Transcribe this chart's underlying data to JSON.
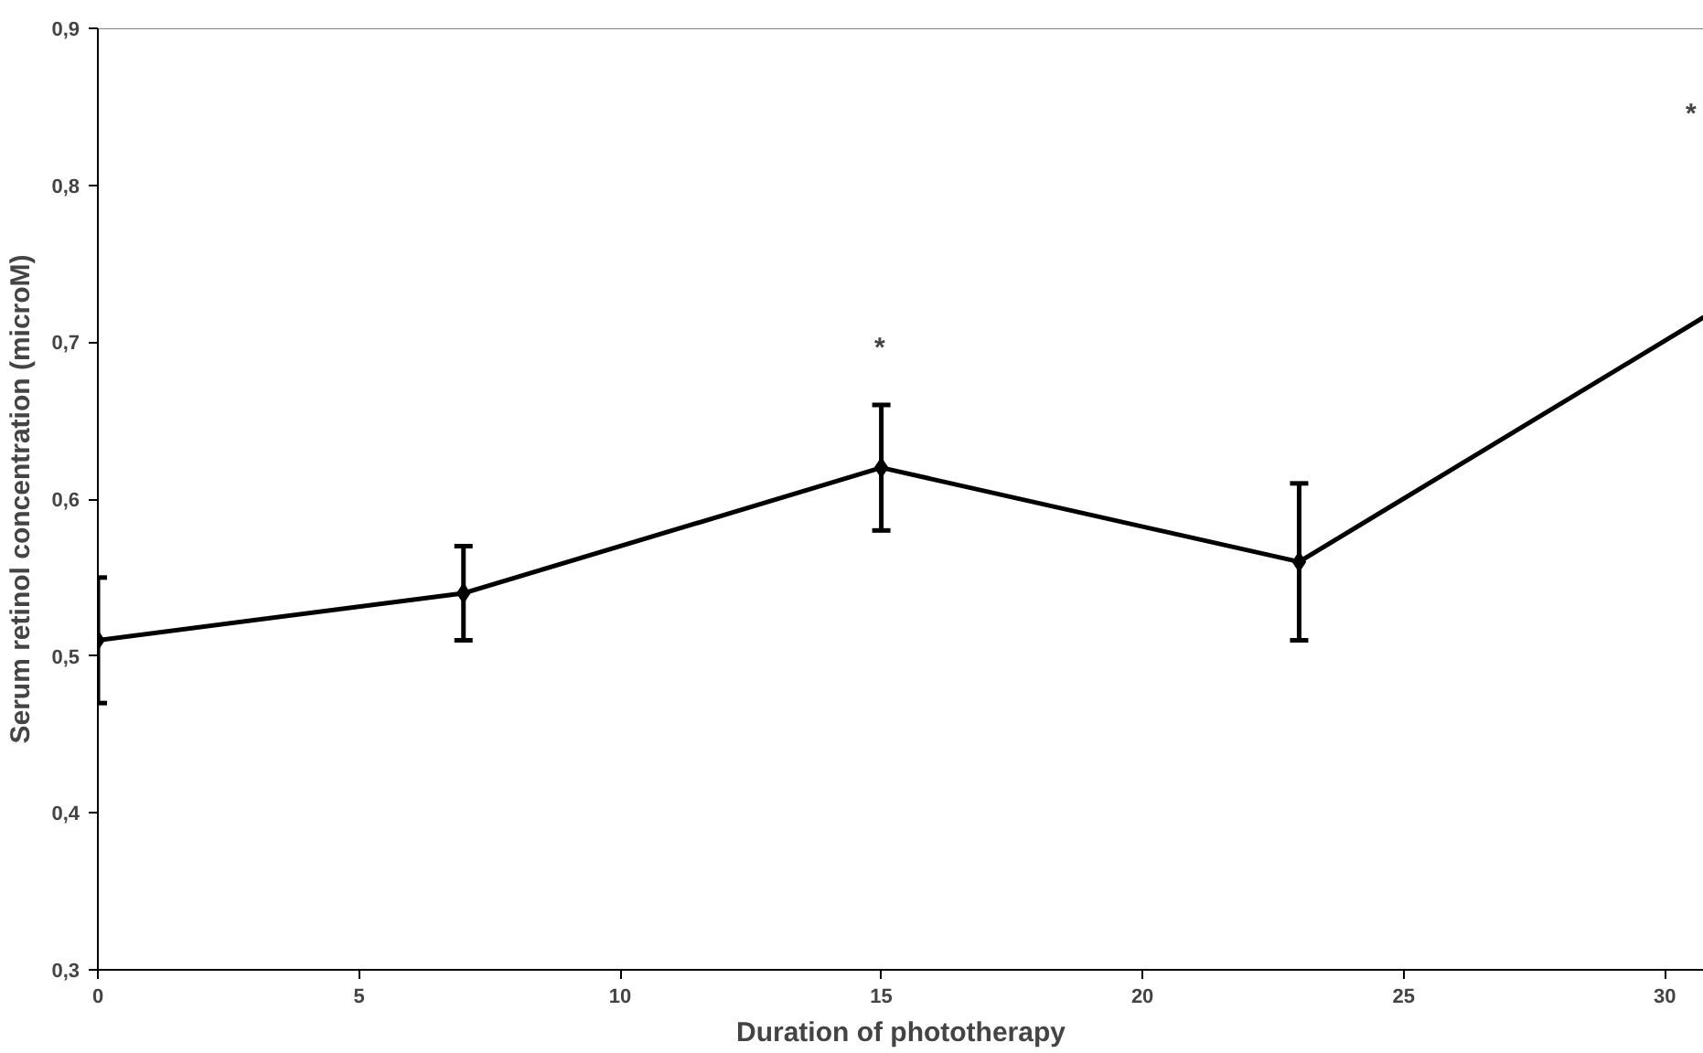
{
  "chart_data": {
    "type": "line",
    "xlabel": "Duration of phototherapy",
    "ylabel": "Serum retinol concentration (microM)",
    "xlim": [
      0,
      30.75
    ],
    "ylim": [
      0.3,
      0.9
    ],
    "xticks": [
      0,
      5,
      10,
      15,
      20,
      25,
      30
    ],
    "yticks": [
      {
        "value": 0.3,
        "label": "0,3"
      },
      {
        "value": 0.4,
        "label": "0,4"
      },
      {
        "value": 0.5,
        "label": "0,5"
      },
      {
        "value": 0.6,
        "label": "0,6"
      },
      {
        "value": 0.7,
        "label": "0,7"
      },
      {
        "value": 0.8,
        "label": "0,8"
      },
      {
        "value": 0.9,
        "label": "0,9"
      }
    ],
    "grid": false,
    "line_style": "solid",
    "series": [
      {
        "color": "#000000",
        "marker": "diamond",
        "x": [
          0,
          7,
          15,
          23
        ],
        "values": [
          0.51,
          0.54,
          0.62,
          0.56
        ],
        "errors": [
          [
            0.47,
            0.55
          ],
          [
            0.51,
            0.57
          ],
          [
            0.58,
            0.66
          ],
          [
            0.51,
            0.61
          ]
        ]
      },
      {
        "color": "#000000",
        "marker": "none",
        "x": [
          23,
          30.75
        ],
        "values": [
          0.56,
          0.716
        ]
      }
    ],
    "annotations": [
      "*",
      "*"
    ]
  }
}
